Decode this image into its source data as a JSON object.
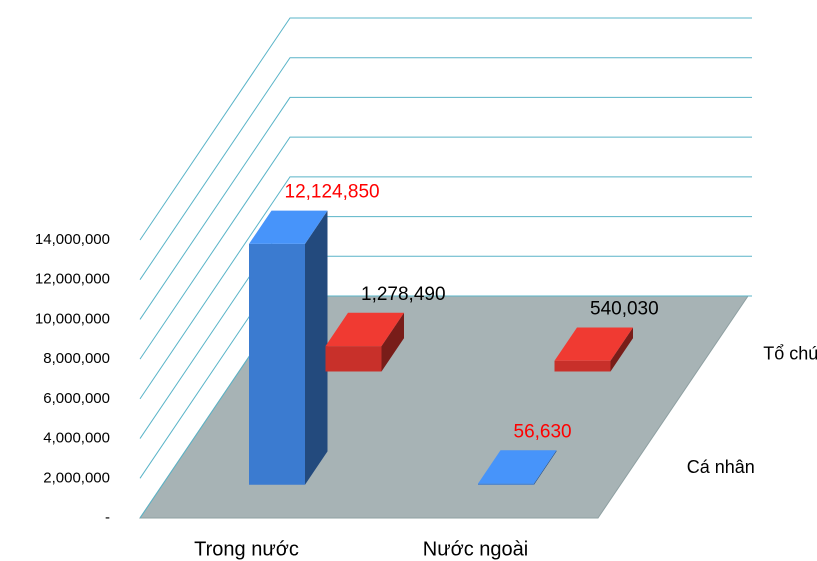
{
  "chart_data": {
    "type": "bar3d",
    "categories": [
      "Trong nước",
      "Nước ngoài"
    ],
    "series": [
      {
        "name": "Cá nhân",
        "color": "#3b7bd0",
        "label_color": "#ff0000",
        "values": [
          12124850,
          56630
        ],
        "value_labels": [
          "12,124,850",
          "56,630"
        ]
      },
      {
        "name": "Tổ chức",
        "color": "#c8302a",
        "label_color": "#000000",
        "values": [
          1278490,
          540030
        ],
        "value_labels": [
          "1,278,490",
          "540,030"
        ]
      }
    ],
    "ylim": [
      0,
      14000000
    ],
    "yticks": [
      {
        "value": 0,
        "label": "-"
      },
      {
        "value": 2000000,
        "label": "2,000,000"
      },
      {
        "value": 4000000,
        "label": "4,000,000"
      },
      {
        "value": 6000000,
        "label": "6,000,000"
      },
      {
        "value": 8000000,
        "label": "8,000,000"
      },
      {
        "value": 10000000,
        "label": "10,000,000"
      },
      {
        "value": 12000000,
        "label": "12,000,000"
      },
      {
        "value": 14000000,
        "label": "14,000,000"
      }
    ],
    "grid": true
  }
}
